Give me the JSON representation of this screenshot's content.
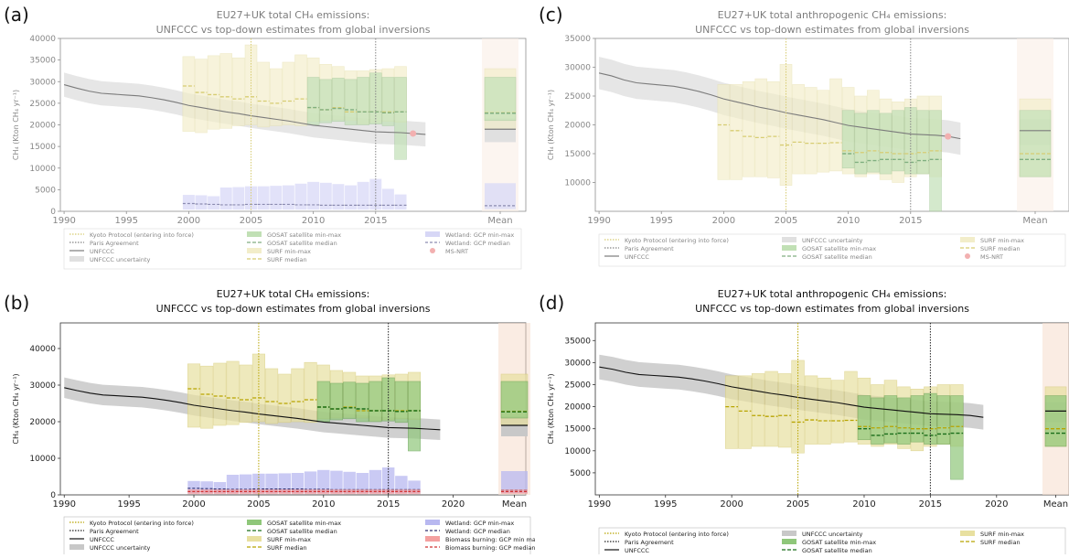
{
  "chart_data": [
    {
      "id": "a",
      "letter": "(a)",
      "type": "bar",
      "title_line1": "EU27+UK total CH₄ emissions:",
      "title_line2": "UNFCCC vs top-down estimates from global inversions",
      "ylabel": "CH₄ (Kton CH₄ yr⁻¹)",
      "ylim": [
        0,
        40000
      ],
      "yticks": [
        "0",
        "5000",
        "10000",
        "15000",
        "20000",
        "25000",
        "30000",
        "35000",
        "40000"
      ],
      "xticks": [
        "1990",
        "1995",
        "2000",
        "2005",
        "2010",
        "2015",
        "Mean"
      ],
      "faded": true,
      "anthropogenic": false,
      "legend": [
        [
          "Kyoto Protocol (entering into force)",
          "GOSAT satellite min-max",
          "Wetland: GCP min-max"
        ],
        [
          "Paris Agreement",
          "GOSAT satellite median",
          "Wetland: GCP median"
        ],
        [
          "UNFCCC",
          "SURF min-max",
          "MS-NRT"
        ],
        [
          "UNFCCC uncertainty",
          "SURF median",
          ""
        ]
      ]
    },
    {
      "id": "b",
      "letter": "(b)",
      "type": "bar",
      "title_line1": "EU27+UK total CH₄ emissions:",
      "title_line2": "UNFCCC vs top-down estimates from global inversions",
      "ylabel": "CH₄ (Kton CH₄ yr⁻¹)",
      "ylim": [
        0,
        47000
      ],
      "yticks": [
        "0",
        "10000",
        "20000",
        "30000",
        "40000"
      ],
      "xticks": [
        "1990",
        "1995",
        "2000",
        "2005",
        "2010",
        "2015",
        "2020",
        "Mean"
      ],
      "faded": false,
      "anthropogenic": false,
      "legend": [
        [
          "Kyoto Protocol (entering into force)",
          "GOSAT satellite min-max",
          "Wetland: GCP min-max"
        ],
        [
          "Paris Agreement",
          "GOSAT satellite median",
          "Wetland: GCP median"
        ],
        [
          "UNFCCC",
          "SURF min-max",
          "Biomass burning: GCP min max"
        ],
        [
          "UNFCCC uncertainty",
          "SURF median",
          "Biomass burning: GCP median"
        ]
      ]
    },
    {
      "id": "c",
      "letter": "(c)",
      "type": "bar",
      "title_line1": "EU27+UK total anthropogenic CH₄ emissions:",
      "title_line2": "UNFCCC vs top-down estimates from global inversions",
      "ylabel": "CH₄ (Kton CH₄ yr⁻¹)",
      "ylim": [
        5000,
        35000
      ],
      "yticks": [
        "10000",
        "15000",
        "20000",
        "25000",
        "30000",
        "35000"
      ],
      "xticks": [
        "1990",
        "1995",
        "2000",
        "2005",
        "2010",
        "2015",
        "Mean"
      ],
      "faded": true,
      "anthropogenic": true,
      "legend": [
        [
          "Kyoto Protocol (entering into force)",
          "UNFCCC uncertainty",
          "SURF min-max"
        ],
        [
          "Paris Agreement",
          "GOSAT satellite min-max",
          "SURF median"
        ],
        [
          "UNFCCC",
          "GOSAT satellite median",
          "MS-NRT"
        ]
      ]
    },
    {
      "id": "d",
      "letter": "(d)",
      "type": "bar",
      "title_line1": "EU27+UK total anthropogenic CH₄ emissions:",
      "title_line2": "UNFCCC vs top-down estimates from global inversions",
      "ylabel": "CH₄ (Kton CH₄ yr⁻¹)",
      "ylim": [
        0,
        39000
      ],
      "yticks": [
        "5000",
        "10000",
        "15000",
        "20000",
        "25000",
        "30000",
        "35000"
      ],
      "xticks": [
        "1990",
        "1995",
        "2000",
        "2005",
        "2010",
        "2015",
        "2020",
        "Mean"
      ],
      "faded": false,
      "anthropogenic": true,
      "legend": [
        [
          "Kyoto Protocol (entering into force)",
          "UNFCCC uncertainty",
          "SURF min-max"
        ],
        [
          "Paris Agreement",
          "GOSAT satellite min-max",
          "SURF median"
        ],
        [
          "UNFCCC",
          "GOSAT satellite median",
          ""
        ]
      ]
    }
  ],
  "series_total": {
    "years": [
      1990,
      1991,
      1992,
      1993,
      1994,
      1995,
      1996,
      1997,
      1998,
      1999,
      2000,
      2001,
      2002,
      2003,
      2004,
      2005,
      2006,
      2007,
      2008,
      2009,
      2010,
      2011,
      2012,
      2013,
      2014,
      2015,
      2016,
      2017,
      2018,
      2019
    ],
    "unfccc": [
      29300,
      28500,
      27800,
      27300,
      27100,
      26900,
      26700,
      26300,
      25800,
      25200,
      24500,
      24000,
      23500,
      23000,
      22600,
      22100,
      21700,
      21300,
      20900,
      20400,
      19900,
      19600,
      19300,
      19000,
      18700,
      18400,
      18300,
      18200,
      18000,
      17800
    ],
    "unfccc_unc_halfwidth": 2800,
    "surf_years": [
      2000,
      2001,
      2002,
      2003,
      2004,
      2005,
      2006,
      2007,
      2008,
      2009,
      2010,
      2011,
      2012,
      2013,
      2014,
      2015,
      2016,
      2017
    ],
    "surf_min": [
      18500,
      18200,
      19000,
      19200,
      19800,
      20000,
      19500,
      19800,
      20000,
      19800,
      20800,
      21000,
      21200,
      21000,
      20200,
      20500,
      20800,
      20600
    ],
    "surf_max": [
      35800,
      35200,
      36000,
      36500,
      35500,
      38500,
      34500,
      33000,
      34500,
      36200,
      35500,
      34000,
      33500,
      32500,
      32500,
      32800,
      33000,
      33500
    ],
    "surf_median": [
      29000,
      27500,
      27000,
      26500,
      26000,
      26500,
      25500,
      25000,
      25500,
      26000,
      24000,
      23500,
      24000,
      23000,
      23000,
      23000,
      23000,
      23000
    ],
    "gosat_years": [
      2010,
      2011,
      2012,
      2013,
      2014,
      2015,
      2016,
      2017
    ],
    "gosat_min": [
      20000,
      20500,
      20800,
      20000,
      20000,
      20200,
      19800,
      12000
    ],
    "gosat_max": [
      31000,
      30500,
      30800,
      30500,
      31000,
      32000,
      31000,
      31000
    ],
    "gosat_median": [
      24000,
      23500,
      23800,
      23500,
      23000,
      23000,
      22800,
      23000
    ],
    "wetland_years": [
      2000,
      2001,
      2002,
      2003,
      2004,
      2005,
      2006,
      2007,
      2008,
      2009,
      2010,
      2011,
      2012,
      2013,
      2014,
      2015,
      2016,
      2017
    ],
    "wetland_min": [
      400,
      400,
      400,
      400,
      400,
      400,
      400,
      400,
      400,
      400,
      400,
      400,
      400,
      400,
      400,
      400,
      400,
      400
    ],
    "wetland_max": [
      3800,
      3700,
      3500,
      5500,
      5600,
      5800,
      5800,
      5900,
      6000,
      6400,
      6800,
      6600,
      6300,
      6000,
      6800,
      7500,
      5200,
      3900
    ],
    "wetland_median": [
      1800,
      1700,
      1600,
      1500,
      1500,
      1600,
      1600,
      1600,
      1600,
      1500,
      1500,
      1400,
      1400,
      1400,
      1400,
      1400,
      1400,
      1400
    ],
    "bb_min": [
      200,
      200,
      200,
      200,
      200,
      200,
      200,
      200,
      200,
      200,
      200,
      200,
      200,
      200,
      200,
      200,
      200,
      200
    ],
    "bb_max": [
      1500,
      1500,
      1500,
      1500,
      1500,
      1500,
      1500,
      1500,
      1500,
      1500,
      1500,
      1500,
      1500,
      1500,
      1500,
      1500,
      1500,
      1500
    ],
    "bb_median": [
      900,
      900,
      900,
      900,
      900,
      900,
      900,
      900,
      900,
      900,
      900,
      900,
      900,
      900,
      900,
      900,
      900,
      900
    ],
    "msnrt": {
      "x": 2018,
      "y": 18000
    },
    "mean": {
      "unfccc": 19000,
      "unfccc_unc": [
        16000,
        21500
      ],
      "surf": [
        19000,
        33000
      ],
      "surf_median": 22800,
      "gosat": [
        21000,
        31000
      ],
      "gosat_median": 22700,
      "wetland": [
        500,
        6500
      ],
      "wetland_median": 1300,
      "bb": [
        300,
        1500
      ],
      "bb_median": 900
    }
  },
  "series_anthro": {
    "years": [
      1990,
      1991,
      1992,
      1993,
      1994,
      1995,
      1996,
      1997,
      1998,
      1999,
      2000,
      2001,
      2002,
      2003,
      2004,
      2005,
      2006,
      2007,
      2008,
      2009,
      2010,
      2011,
      2012,
      2013,
      2014,
      2015,
      2016,
      2017,
      2018,
      2019
    ],
    "unfccc": [
      29000,
      28500,
      27800,
      27300,
      27100,
      26900,
      26700,
      26300,
      25800,
      25200,
      24500,
      24000,
      23500,
      23000,
      22600,
      22100,
      21700,
      21300,
      20900,
      20400,
      19900,
      19600,
      19300,
      19000,
      18700,
      18400,
      18300,
      18200,
      18000,
      17600
    ],
    "unfccc_unc_halfwidth": 2800,
    "surf_years": [
      2000,
      2001,
      2002,
      2003,
      2004,
      2005,
      2006,
      2007,
      2008,
      2009,
      2010,
      2011,
      2012,
      2013,
      2014,
      2015,
      2016,
      2017
    ],
    "surf_min": [
      10500,
      10500,
      11000,
      11000,
      10800,
      9500,
      11500,
      11500,
      11800,
      12000,
      11500,
      11000,
      11500,
      10500,
      10000,
      11000,
      11500,
      11000
    ],
    "surf_max": [
      27000,
      27000,
      27500,
      28000,
      27500,
      30500,
      27000,
      26500,
      26000,
      28000,
      26500,
      25000,
      26000,
      24500,
      24000,
      24500,
      25000,
      25000
    ],
    "surf_median": [
      20000,
      19000,
      18000,
      17800,
      18000,
      16500,
      17000,
      16800,
      16800,
      16900,
      15500,
      15200,
      15500,
      15200,
      15000,
      15000,
      15200,
      15500
    ],
    "gosat_years": [
      2010,
      2011,
      2012,
      2013,
      2014,
      2015,
      2016,
      2017
    ],
    "gosat_min": [
      12500,
      11500,
      11800,
      11500,
      12000,
      11500,
      11500,
      3500
    ],
    "gosat_max": [
      22500,
      22000,
      22500,
      22000,
      22500,
      23000,
      22500,
      22500
    ],
    "gosat_median": [
      15000,
      13500,
      13800,
      14000,
      14000,
      13500,
      13800,
      14000
    ],
    "msnrt": {
      "x": 2018,
      "y": 18000
    },
    "mean": {
      "unfccc": 19000,
      "unfccc_unc": [
        16500,
        21000
      ],
      "surf": [
        11000,
        24500
      ],
      "surf_median": 15000,
      "gosat": [
        11000,
        22500
      ],
      "gosat_median": 14000
    }
  },
  "colors": {
    "surf_fill": "#e8e0a0",
    "surf_edge": "#d4c870",
    "surf_median": "#b8a400",
    "gosat_fill": "#8fc77a",
    "gosat_edge": "#5a9a4a",
    "gosat_median": "#1a6e1a",
    "wetland_fill": "#b8b8f0",
    "wetland_median": "#303070",
    "bb_fill": "#f4a0a0",
    "bb_median": "#d03030",
    "unfccc": "#111111",
    "unfccc_unc": "#c8c8c8",
    "kyoto": "#b8a400",
    "paris": "#222222",
    "msnrt": "#e87070",
    "mean_bg": "#f6e0d0"
  }
}
